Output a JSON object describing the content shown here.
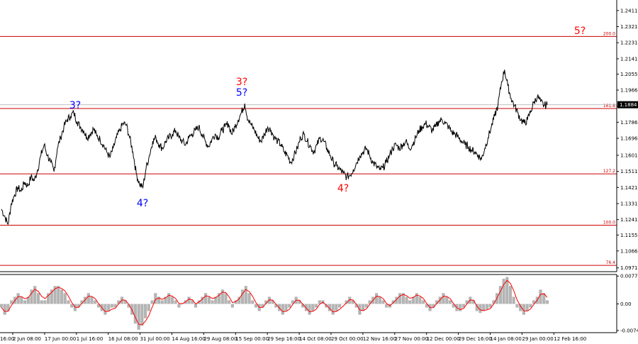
{
  "chart_data": {
    "type": "line",
    "instrument_price": {
      "last_price_label": "1.1884",
      "last_price": 1.1884,
      "y_ticks": [
        "1.2411",
        "1.2321",
        "1.2231",
        "1.2141",
        "1.2055",
        "1.1966",
        "1.1876",
        "1.1786",
        "1.1696",
        "1.1601",
        "1.1511",
        "1.1421",
        "1.1331",
        "1.1241",
        "1.1155",
        "1.1066",
        "1.0971"
      ],
      "ylim": [
        1.095,
        1.247
      ]
    },
    "x_ticks": [
      "2 Jun 08:00",
      "17 Jun 00:00",
      "1 Jul 16:00",
      "16 Jul 08:00",
      "31 Jul 00:00",
      "14 Aug 16:00",
      "29 Aug 08:00",
      "15 Sep 00:00",
      "29 Sep 16:00",
      "14 Oct 08:00",
      "29 Oct 00:00",
      "12 Nov 16:00",
      "27 Nov 00:00",
      "12 Dec 00:00",
      "29 Dec 16:00",
      "14 Jan 08:00",
      "29 Jan 00:00",
      "12 Feb 16:00"
    ],
    "x_tick_partial": "16:00",
    "fib_levels": [
      {
        "label": "200.0",
        "value": 1.2266
      },
      {
        "label": "161.8",
        "value": 1.1863
      },
      {
        "label": "127.2",
        "value": 1.1497
      },
      {
        "label": "100.0",
        "value": 1.121
      },
      {
        "label": "76.4",
        "value": 1.0985
      }
    ],
    "wave_labels": [
      {
        "text": "3?",
        "color": "#0000ff",
        "date_index": 22
      },
      {
        "text": "4?",
        "color": "#0000ff",
        "date_index": 43
      },
      {
        "text": "3?",
        "color": "#ff0000",
        "date_index": 74
      },
      {
        "text": "5?",
        "color": "#0000ff",
        "date_index": 74
      },
      {
        "text": "4?",
        "color": "#ff0000",
        "date_index": 106
      },
      {
        "text": "5?",
        "color": "#ff0000",
        "date_index": 180
      }
    ],
    "price_series": [
      1.13,
      1.126,
      1.1215,
      1.133,
      1.138,
      1.142,
      1.14,
      1.145,
      1.143,
      1.148,
      1.146,
      1.152,
      1.16,
      1.166,
      1.16,
      1.156,
      1.151,
      1.164,
      1.17,
      1.176,
      1.18,
      1.182,
      1.184,
      1.179,
      1.176,
      1.174,
      1.17,
      1.172,
      1.175,
      1.171,
      1.169,
      1.166,
      1.162,
      1.159,
      1.164,
      1.17,
      1.174,
      1.178,
      1.177,
      1.17,
      1.162,
      1.15,
      1.144,
      1.142,
      1.153,
      1.16,
      1.168,
      1.17,
      1.166,
      1.164,
      1.168,
      1.17,
      1.172,
      1.174,
      1.17,
      1.168,
      1.166,
      1.17,
      1.172,
      1.174,
      1.176,
      1.172,
      1.168,
      1.165,
      1.169,
      1.172,
      1.17,
      1.174,
      1.176,
      1.178,
      1.172,
      1.176,
      1.18,
      1.184,
      1.189,
      1.18,
      1.177,
      1.174,
      1.17,
      1.168,
      1.172,
      1.176,
      1.174,
      1.17,
      1.168,
      1.166,
      1.162,
      1.16,
      1.156,
      1.16,
      1.164,
      1.17,
      1.172,
      1.168,
      1.165,
      1.162,
      1.166,
      1.17,
      1.168,
      1.164,
      1.16,
      1.156,
      1.154,
      1.152,
      1.15,
      1.148,
      1.149,
      1.152,
      1.156,
      1.16,
      1.162,
      1.164,
      1.16,
      1.156,
      1.154,
      1.152,
      1.153,
      1.156,
      1.16,
      1.164,
      1.166,
      1.164,
      1.166,
      1.168,
      1.164,
      1.166,
      1.17,
      1.174,
      1.176,
      1.178,
      1.176,
      1.174,
      1.176,
      1.179,
      1.18,
      1.178,
      1.176,
      1.173,
      1.172,
      1.17,
      1.168,
      1.166,
      1.165,
      1.163,
      1.162,
      1.16,
      1.158,
      1.164,
      1.17,
      1.176,
      1.182,
      1.188,
      1.2,
      1.208,
      1.199,
      1.192,
      1.188,
      1.184,
      1.18,
      1.178,
      1.18,
      1.185,
      1.19,
      1.193,
      1.19,
      1.188,
      1.1884
    ],
    "oscillator": {
      "y_ticks": [
        "0.00776",
        "0.00",
        "-0.0074"
      ],
      "ylim": [
        -0.008,
        0.0082
      ],
      "values": [
        -0.001,
        -0.003,
        -0.002,
        0.001,
        0.002,
        0.003,
        0.002,
        0.001,
        0.002,
        0.004,
        0.005,
        0.003,
        0.001,
        0.001,
        0.003,
        0.004,
        0.005,
        0.005,
        0.004,
        0.003,
        0.001,
        -0.001,
        -0.002,
        -0.001,
        0.001,
        0.002,
        0.003,
        0.002,
        0.001,
        -0.001,
        -0.002,
        -0.003,
        -0.002,
        -0.001,
        -0.001,
        0.001,
        0.002,
        0.001,
        -0.001,
        -0.003,
        -0.0055,
        -0.0072,
        -0.006,
        -0.004,
        -0.002,
        0.001,
        0.003,
        0.002,
        0.001,
        0.002,
        0.003,
        0.002,
        0.001,
        -0.001,
        0.0,
        0.001,
        0.002,
        0.001,
        -0.001,
        0.001,
        0.002,
        0.003,
        0.002,
        0.001,
        0.002,
        0.003,
        0.004,
        0.003,
        0.001,
        -0.001,
        0.001,
        0.002,
        0.004,
        0.005,
        0.003,
        0.001,
        -0.001,
        -0.002,
        -0.001,
        0.001,
        0.002,
        0.001,
        -0.001,
        -0.002,
        -0.003,
        -0.002,
        -0.001,
        0.001,
        0.002,
        0.001,
        -0.001,
        -0.002,
        -0.003,
        -0.002,
        -0.001,
        0.001,
        0.001,
        -0.001,
        -0.002,
        -0.003,
        -0.002,
        -0.001,
        0.0,
        0.001,
        0.002,
        0.001,
        -0.001,
        -0.003,
        -0.002,
        -0.001,
        0.001,
        0.002,
        0.003,
        0.002,
        0.001,
        -0.001,
        -0.001,
        0.001,
        0.002,
        0.003,
        0.003,
        0.002,
        0.001,
        0.002,
        0.003,
        0.002,
        0.001,
        -0.001,
        -0.002,
        -0.001,
        0.001,
        0.002,
        0.003,
        0.002,
        0.001,
        -0.001,
        -0.002,
        -0.002,
        -0.001,
        0.001,
        0.002,
        0.001,
        -0.002,
        -0.0025,
        -0.002,
        -0.0015,
        -0.001,
        0.001,
        0.003,
        0.005,
        0.007,
        0.0075,
        0.005,
        0.002,
        -0.001,
        -0.002,
        -0.003,
        -0.002,
        -0.001,
        0.001,
        0.002,
        0.004,
        0.003,
        0.001
      ]
    }
  },
  "colors": {
    "price_line": "#000000",
    "fib_line": "#cc0000",
    "signal_line": "#ff0000",
    "histogram": "#b4b4b4",
    "current_price_line": "#c0c0c0",
    "axis": "#000000"
  }
}
